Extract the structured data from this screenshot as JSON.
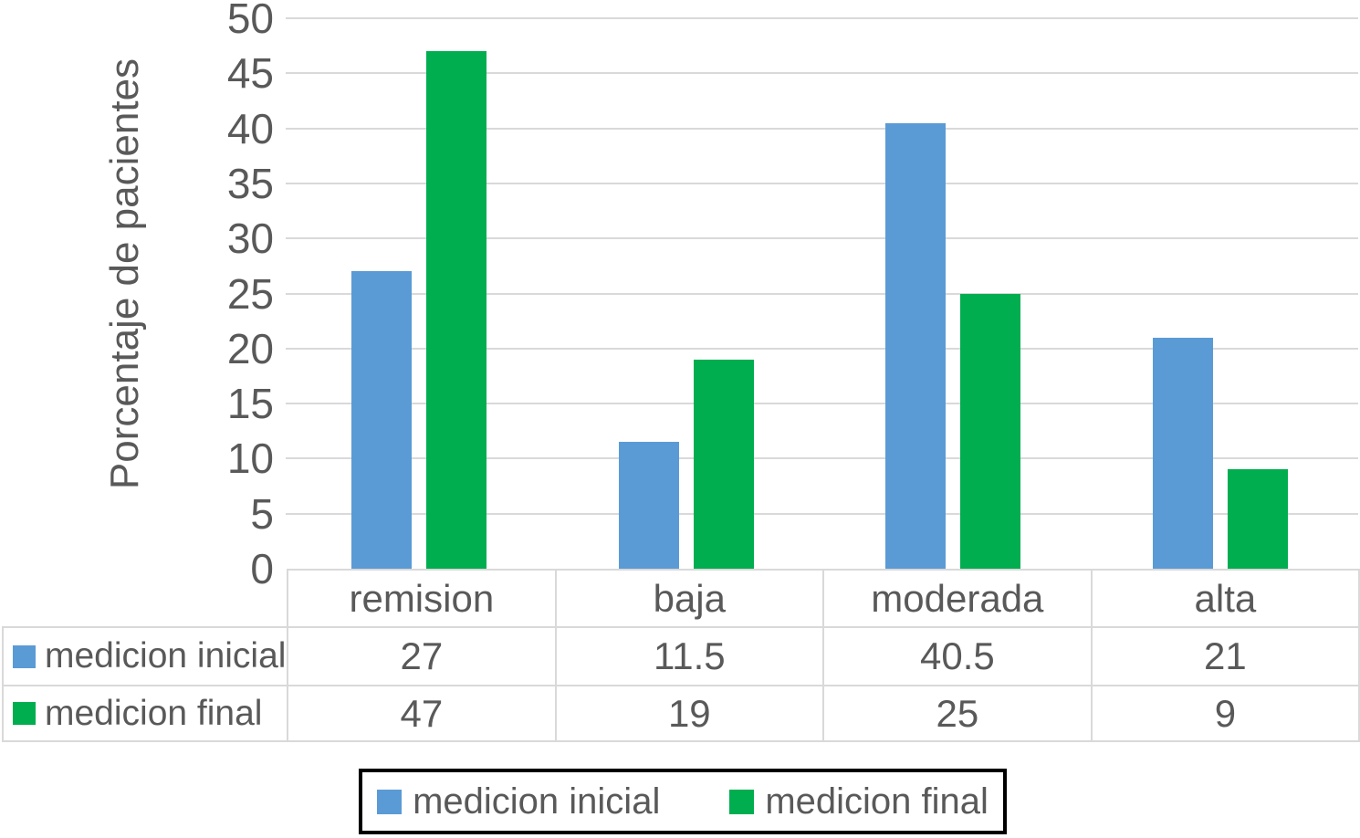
{
  "chart_data": {
    "type": "bar",
    "title": "",
    "xlabel": "",
    "ylabel": "Porcentaje de pacientes",
    "categories": [
      "remision",
      "baja",
      "moderada",
      "alta"
    ],
    "series": [
      {
        "name": "medicion inicial",
        "color": "#5B9BD5",
        "values": [
          27,
          11.5,
          40.5,
          21
        ]
      },
      {
        "name": "medicion final",
        "color": "#00AE50",
        "values": [
          47,
          19,
          25,
          9
        ]
      }
    ],
    "ylim": [
      0,
      50
    ],
    "ytick_step": 5,
    "ytick_labels": [
      "0",
      "5",
      "10",
      "15",
      "20",
      "25",
      "30",
      "35",
      "40",
      "45",
      "50"
    ],
    "grid": "horizontal",
    "legend_position": "bottom",
    "data_table_shown": true
  },
  "colors": {
    "background": "#FFFFFF",
    "text": "#595959",
    "gridline": "#D9D9D9",
    "table_border": "#D9D9D9",
    "series_blue": "#5B9BD5",
    "series_green": "#00AE50",
    "legend_border": "#000000"
  }
}
